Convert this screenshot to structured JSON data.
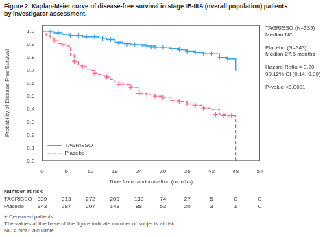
{
  "chart_data": {
    "type": "line",
    "title": [
      "Figure 2. Kaplan-Meier curve of disease-free survival in stage IB-IIIA (overall population) patients",
      "by investigator assessment."
    ],
    "xlabel": "Time from randomisation (months)",
    "ylabel": "Probability of Disease-Free Survival",
    "xlim": [
      0,
      54
    ],
    "ylim": [
      0.0,
      1.05
    ],
    "xticks": [
      0,
      6,
      12,
      18,
      24,
      30,
      36,
      42,
      48,
      54
    ],
    "yticks": [
      {
        "value": 0.0,
        "label": "0.0"
      },
      0.1,
      0.2,
      0.3,
      0.4,
      0.5,
      0.6,
      0.7,
      0.8,
      0.9,
      {
        "value": 1.0,
        "label": "1.0"
      }
    ],
    "grid": false,
    "legend": "lower left",
    "series": [
      {
        "name": "TAGRISSO",
        "color": "#36a2eb",
        "line_style": "solid",
        "x": [
          0,
          1,
          2,
          3,
          4,
          5,
          6,
          7,
          8,
          9,
          10,
          12,
          14,
          16,
          18,
          20,
          22,
          24,
          26,
          28,
          30,
          32,
          34,
          36,
          38,
          40,
          42,
          44,
          46,
          48
        ],
        "values": [
          1.0,
          1.0,
          1.0,
          0.99,
          0.99,
          0.98,
          0.98,
          0.97,
          0.97,
          0.97,
          0.96,
          0.96,
          0.95,
          0.94,
          0.92,
          0.91,
          0.9,
          0.9,
          0.89,
          0.88,
          0.88,
          0.87,
          0.86,
          0.85,
          0.84,
          0.83,
          0.83,
          0.8,
          0.79,
          0.7
        ],
        "censored": {
          "marker": "+",
          "x": [
            2,
            4,
            7,
            9,
            11,
            13,
            15,
            17,
            19,
            21,
            23,
            25,
            26,
            27,
            28,
            30,
            32,
            34,
            36,
            38,
            40,
            42,
            44,
            46
          ],
          "values": [
            1.0,
            0.99,
            0.97,
            0.97,
            0.96,
            0.96,
            0.95,
            0.94,
            0.91,
            0.9,
            0.9,
            0.89,
            0.89,
            0.88,
            0.88,
            0.88,
            0.87,
            0.86,
            0.85,
            0.84,
            0.83,
            0.83,
            0.8,
            0.79
          ]
        }
      },
      {
        "name": "Placebo",
        "color": "#ff6384",
        "line_style": "dashed",
        "x": [
          0,
          1,
          2,
          3,
          4,
          5,
          6,
          7,
          8,
          9,
          10,
          11,
          12,
          13,
          14,
          15,
          16,
          17,
          18,
          20,
          22,
          24,
          26,
          28,
          30,
          32,
          34,
          36,
          38,
          40,
          42,
          44,
          46,
          48
        ],
        "values": [
          1.0,
          0.97,
          0.95,
          0.93,
          0.91,
          0.9,
          0.89,
          0.82,
          0.77,
          0.74,
          0.73,
          0.71,
          0.7,
          0.68,
          0.67,
          0.66,
          0.65,
          0.63,
          0.61,
          0.59,
          0.57,
          0.52,
          0.51,
          0.5,
          0.49,
          0.47,
          0.46,
          0.44,
          0.43,
          0.41,
          0.4,
          0.36,
          0.35,
          0.35
        ],
        "censored": {
          "marker": "+",
          "x": [
            3,
            5,
            8,
            10,
            13,
            16,
            19,
            22,
            24,
            26,
            28,
            30,
            32,
            34,
            36,
            38,
            40,
            43,
            45,
            47
          ],
          "values": [
            0.93,
            0.9,
            0.77,
            0.73,
            0.68,
            0.65,
            0.59,
            0.57,
            0.52,
            0.51,
            0.5,
            0.49,
            0.47,
            0.46,
            0.44,
            0.43,
            0.41,
            0.36,
            0.35,
            0.35
          ]
        }
      }
    ],
    "reference_lines": [
      {
        "x": 48,
        "y": [
          0.0,
          0.35
        ],
        "color": "#666666",
        "line_style": "dashed"
      }
    ],
    "annotation": "TAGRISSO (N=339)\nMedian NC\n\nPlacebo (N=343)\nMedian 27.5 months\n\nHazard Ratio = 0.20\n99.12% CI (0.14, 0.30)\n\nP-value <0.0001",
    "risk_table": {
      "title": "Number at risk",
      "x": [
        0,
        6,
        12,
        18,
        24,
        30,
        36,
        42,
        48,
        54
      ],
      "rows": [
        {
          "name": "TAGRISSO",
          "values": [
            339,
            313,
            272,
            208,
            138,
            74,
            27,
            5,
            0,
            0
          ]
        },
        {
          "name": "Placebo",
          "values": [
            343,
            287,
            207,
            148,
            88,
            53,
            20,
            3,
            1,
            0
          ]
        }
      ]
    },
    "footnotes": [
      "+ Censored patients.",
      "The values at the base of the figure indicate number of subjects at risk.",
      "NC = Not Calculable."
    ]
  }
}
